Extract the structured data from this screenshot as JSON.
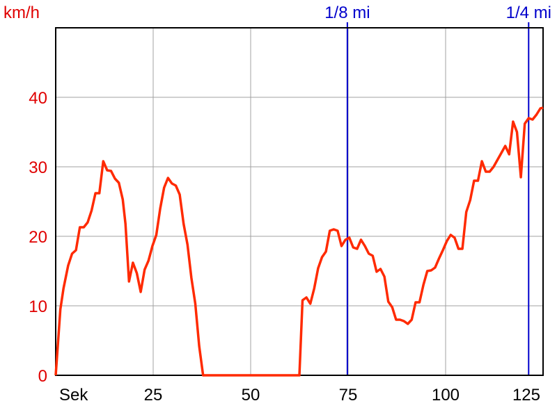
{
  "colors": {
    "series": "#ff2a00",
    "grid": "#a0a0a0",
    "axis": "#000000",
    "marker": "#0000cc",
    "ytick_text": "#e00000",
    "xtick_text": "#000000"
  },
  "chart_data": {
    "type": "line",
    "title": "",
    "ylabel": "km/h",
    "xlabel": "Sek",
    "xlim": [
      0,
      125
    ],
    "ylim": [
      0,
      50
    ],
    "grid": true,
    "x_ticks": [
      25,
      50,
      75,
      100,
      125
    ],
    "y_ticks": [
      0,
      10,
      20,
      30,
      40
    ],
    "x_tick_labels": [
      "25",
      "50",
      "75",
      "100",
      "125"
    ],
    "y_tick_labels": [
      "0",
      "10",
      "20",
      "30",
      "40"
    ],
    "markers": [
      {
        "label": "1/8 mi",
        "x": 74.8
      },
      {
        "label": "1/4 mi",
        "x": 121.3
      }
    ],
    "series": [
      {
        "x": [
          0,
          1.2,
          2.0,
          3.2,
          4.2,
          5.2,
          6.2,
          7.2,
          8.2,
          9.2,
          10.2,
          11.2,
          12.2,
          13.2,
          14.2,
          15.2,
          16.2,
          17.2,
          17.9,
          18.8,
          19.8,
          20.8,
          21.8,
          22.8,
          23.8,
          24.8,
          25.8,
          26.8,
          27.8,
          28.8,
          29.8,
          30.8,
          31.8,
          32.8,
          33.8,
          34.8,
          35.8,
          36.8,
          37.8,
          38.5,
          40,
          45,
          50,
          55,
          60,
          62.5,
          63.3,
          64.3,
          65.3,
          66.3,
          67.3,
          68.3,
          69.3,
          70.3,
          71.3,
          72.3,
          73.3,
          74.3,
          75.3,
          76.3,
          77.3,
          78.3,
          79.3,
          80.3,
          81.3,
          82.3,
          83.3,
          84.3,
          85.3,
          86.3,
          87.3,
          88.3,
          89.3,
          90.3,
          91.3,
          92.3,
          93.3,
          94.3,
          95.3,
          96.3,
          97.3,
          98.3,
          99.3,
          100.3,
          101.3,
          102.3,
          103.3,
          104.3,
          105.3,
          106.3,
          107.3,
          108.3,
          109.3,
          110.3,
          111.3,
          112.3,
          113.3,
          114.3,
          115.3,
          116.3,
          117.3,
          118.3,
          119.3,
          120.3,
          121.3,
          122.3,
          123.3,
          124.3,
          125
        ],
        "values": [
          0,
          9.5,
          12.5,
          15.8,
          17.5,
          18.0,
          21.3,
          21.3,
          22.0,
          23.7,
          26.2,
          26.2,
          30.8,
          29.5,
          29.4,
          28.3,
          27.7,
          25.3,
          21.8,
          13.5,
          16.2,
          14.7,
          12.0,
          15.2,
          16.5,
          18.6,
          20.2,
          24.0,
          27.0,
          28.4,
          27.6,
          27.3,
          26.0,
          21.8,
          18.8,
          14.0,
          10.3,
          4.2,
          0,
          0,
          0,
          0,
          0,
          0,
          0,
          0,
          10.8,
          11.2,
          10.3,
          12.5,
          15.4,
          17.0,
          17.8,
          20.8,
          21.0,
          20.8,
          18.6,
          19.5,
          19.8,
          18.4,
          18.2,
          19.5,
          18.6,
          17.5,
          17.2,
          14.9,
          15.3,
          14.2,
          10.6,
          9.8,
          8.0,
          8.0,
          7.8,
          7.4,
          8.0,
          10.5,
          10.5,
          13.0,
          15.0,
          15.1,
          15.5,
          16.8,
          18.0,
          19.3,
          20.2,
          19.8,
          18.2,
          18.2,
          23.5,
          25.2,
          28.0,
          28.0,
          30.8,
          29.3,
          29.3,
          30.0,
          31.0,
          32.0,
          33.0,
          31.8,
          36.5,
          35.0,
          28.5,
          36.2,
          37.0,
          36.8,
          37.5,
          38.4,
          38.5
        ]
      }
    ]
  }
}
